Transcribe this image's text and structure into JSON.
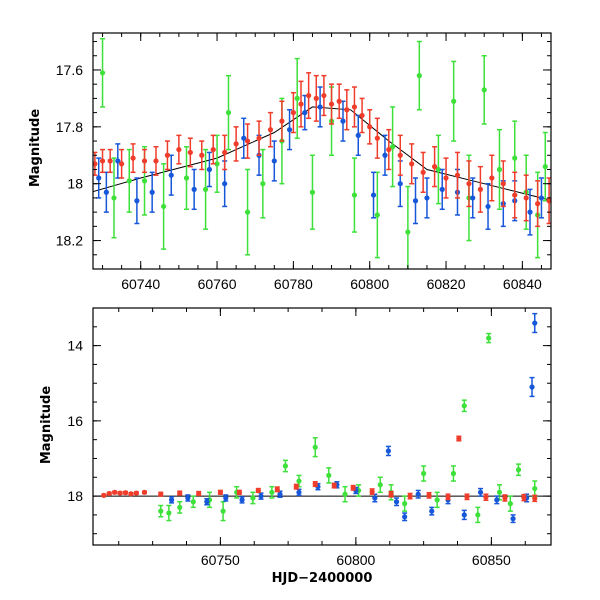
{
  "colors": {
    "red": "#f03c2a",
    "green": "#3ee03a",
    "blue": "#1757d9",
    "trend": "#000000"
  },
  "chart_data": [
    {
      "type": "scatter",
      "title": "",
      "xlabel": "",
      "ylabel": "Magnitude",
      "xlim": [
        60727.5,
        60847.5
      ],
      "ylim": [
        18.3,
        17.47
      ],
      "y_inverted": true,
      "grid": false,
      "xticks": [
        60740,
        60760,
        60780,
        60800,
        60820,
        60840
      ],
      "xtick_labels": [
        "60740",
        "60760",
        "60780",
        "60800",
        "60820",
        "60840"
      ],
      "yticks": [
        17.6,
        17.8,
        18.0,
        18.2
      ],
      "ytick_labels": [
        "17.6",
        "17.8",
        "18",
        "18.2"
      ],
      "trend": {
        "x": [
          60727,
          60740,
          60760,
          60775,
          60785,
          60795,
          60805,
          60815,
          60830,
          60848
        ],
        "y": [
          18.03,
          17.98,
          17.91,
          17.82,
          17.73,
          17.74,
          17.85,
          17.95,
          18.0,
          18.06
        ]
      },
      "series": [
        {
          "color": "red",
          "x": [
            60728,
            60730,
            60732,
            60735,
            60738,
            60741,
            60744,
            60747,
            60750,
            60753,
            60756,
            60759,
            60762,
            60765,
            60768,
            60771,
            60774,
            60777,
            60780,
            60782,
            60784,
            60786,
            60788,
            60790,
            60792,
            60794,
            60796,
            60798,
            60800,
            60802,
            60805,
            60808,
            60811,
            60814,
            60817,
            60820,
            60823,
            60826,
            60829,
            60832,
            60835,
            60838,
            60841,
            60844,
            60847
          ],
          "y": [
            17.93,
            17.92,
            17.92,
            17.93,
            17.91,
            17.92,
            17.92,
            17.9,
            17.88,
            17.89,
            17.9,
            17.88,
            17.89,
            17.86,
            17.85,
            17.84,
            17.81,
            17.78,
            17.75,
            17.72,
            17.69,
            17.7,
            17.69,
            17.72,
            17.71,
            17.74,
            17.73,
            17.76,
            17.8,
            17.84,
            17.88,
            17.9,
            17.93,
            17.96,
            17.94,
            17.98,
            17.97,
            18.0,
            18.02,
            17.98,
            18.0,
            18.04,
            18.05,
            18.07,
            18.06
          ],
          "err": [
            0.04,
            0.04,
            0.04,
            0.05,
            0.05,
            0.04,
            0.05,
            0.05,
            0.05,
            0.05,
            0.05,
            0.05,
            0.06,
            0.06,
            0.06,
            0.06,
            0.06,
            0.07,
            0.07,
            0.08,
            0.08,
            0.08,
            0.07,
            0.07,
            0.06,
            0.07,
            0.07,
            0.06,
            0.06,
            0.07,
            0.07,
            0.07,
            0.07,
            0.07,
            0.07,
            0.07,
            0.08,
            0.08,
            0.08,
            0.08,
            0.08,
            0.08,
            0.08,
            0.08,
            0.08
          ]
        },
        {
          "color": "green",
          "x": [
            60730,
            60733,
            60737,
            60741,
            60746,
            60752,
            60757,
            60760,
            60763,
            60768,
            60772,
            60777,
            60781,
            60785,
            60790,
            60796,
            60802,
            60806,
            60810,
            60813,
            60818,
            60822,
            60826,
            60830,
            60834,
            60838,
            60841,
            60844,
            60846
          ],
          "y": [
            17.61,
            18.05,
            17.99,
            17.99,
            18.08,
            17.98,
            18.02,
            17.93,
            17.75,
            18.1,
            18.0,
            17.85,
            17.7,
            18.03,
            17.78,
            18.04,
            18.11,
            17.87,
            18.17,
            17.62,
            17.95,
            17.71,
            18.05,
            17.67,
            17.95,
            17.91,
            18.03,
            18.11,
            17.94
          ],
          "err": [
            0.12,
            0.14,
            0.11,
            0.12,
            0.15,
            0.11,
            0.14,
            0.1,
            0.13,
            0.15,
            0.12,
            0.15,
            0.14,
            0.13,
            0.12,
            0.13,
            0.15,
            0.14,
            0.16,
            0.12,
            0.12,
            0.14,
            0.15,
            0.12,
            0.14,
            0.13,
            0.13,
            0.15,
            0.12
          ]
        },
        {
          "color": "blue",
          "x": [
            60729,
            60731,
            60734,
            60739,
            60743,
            60748,
            60754,
            60758,
            60762,
            60767,
            60771,
            60775,
            60779,
            60783,
            60787,
            60793,
            60797,
            60801,
            60804,
            60808,
            60812,
            60815,
            60819,
            60823,
            60827,
            60831,
            60835,
            60838,
            60842,
            60845
          ],
          "y": [
            17.98,
            18.03,
            17.92,
            18.06,
            18.03,
            17.97,
            18.02,
            17.95,
            18.0,
            17.84,
            17.9,
            17.92,
            17.81,
            17.75,
            17.73,
            17.78,
            17.83,
            18.04,
            17.9,
            18.0,
            18.06,
            18.05,
            18.02,
            18.03,
            18.05,
            18.08,
            18.07,
            18.06,
            18.1,
            18.05
          ],
          "err": [
            0.07,
            0.07,
            0.06,
            0.08,
            0.07,
            0.07,
            0.07,
            0.06,
            0.08,
            0.07,
            0.07,
            0.07,
            0.07,
            0.06,
            0.07,
            0.07,
            0.07,
            0.08,
            0.07,
            0.08,
            0.08,
            0.07,
            0.07,
            0.08,
            0.07,
            0.08,
            0.08,
            0.07,
            0.08,
            0.07
          ]
        }
      ]
    },
    {
      "type": "scatter",
      "title": "",
      "xlabel": "HJD−2400000",
      "ylabel": "Magnitude",
      "xlim": [
        60703,
        60872
      ],
      "ylim": [
        19.3,
        13.0
      ],
      "y_inverted": true,
      "grid": false,
      "xticks": [
        60750,
        60800,
        60850
      ],
      "xtick_labels": [
        "60750",
        "60800",
        "60850"
      ],
      "yticks": [
        14,
        16,
        18
      ],
      "ytick_labels": [
        "14",
        "16",
        "18"
      ],
      "trend": {
        "x": [
          60703,
          60872
        ],
        "y": [
          18.0,
          18.0
        ]
      },
      "series": [
        {
          "color": "red",
          "x": [
            60707,
            60709,
            60711,
            60713,
            60715,
            60717,
            60719,
            60722,
            60728,
            60735,
            60742,
            60750,
            60757,
            60764,
            60771,
            60778,
            60785,
            60792,
            60799,
            60806,
            60813,
            60820,
            60827,
            60834,
            60838,
            60841,
            60848,
            60855,
            60862,
            60866
          ],
          "y": [
            17.98,
            17.93,
            17.9,
            17.92,
            17.91,
            17.94,
            17.92,
            17.9,
            17.95,
            17.92,
            17.93,
            17.9,
            17.9,
            17.85,
            17.82,
            17.75,
            17.68,
            17.72,
            17.78,
            17.88,
            17.95,
            18.0,
            17.98,
            18.02,
            16.47,
            18.02,
            18.03,
            18.05,
            18.04,
            18.06
          ],
          "err": [
            0.03,
            0.03,
            0.03,
            0.03,
            0.03,
            0.03,
            0.03,
            0.03,
            0.05,
            0.05,
            0.05,
            0.05,
            0.05,
            0.05,
            0.06,
            0.06,
            0.06,
            0.06,
            0.06,
            0.07,
            0.07,
            0.07,
            0.07,
            0.07,
            0.06,
            0.07,
            0.08,
            0.08,
            0.08,
            0.08
          ]
        },
        {
          "color": "green",
          "x": [
            60728,
            60731,
            60735,
            60740,
            60746,
            60751,
            60756,
            60762,
            60769,
            60774,
            60779,
            60785,
            60790,
            60796,
            60801,
            60809,
            60813,
            60818,
            60825,
            60830,
            60836,
            60840,
            60845,
            60849,
            60853,
            60857,
            60860,
            60866
          ],
          "y": [
            18.4,
            18.45,
            18.3,
            18.15,
            18.1,
            18.4,
            17.9,
            18.05,
            17.9,
            17.2,
            17.6,
            16.7,
            17.45,
            17.95,
            17.85,
            17.7,
            17.9,
            18.2,
            17.4,
            18.1,
            17.4,
            15.6,
            18.5,
            13.8,
            17.9,
            18.2,
            17.3,
            17.8
          ],
          "err": [
            0.15,
            0.2,
            0.15,
            0.15,
            0.2,
            0.25,
            0.15,
            0.15,
            0.15,
            0.15,
            0.15,
            0.25,
            0.2,
            0.2,
            0.15,
            0.2,
            0.2,
            0.2,
            0.2,
            0.2,
            0.2,
            0.15,
            0.2,
            0.12,
            0.2,
            0.2,
            0.15,
            0.2
          ]
        },
        {
          "color": "blue",
          "x": [
            60732,
            60738,
            60745,
            60752,
            60758,
            60765,
            60772,
            60779,
            60786,
            60793,
            60800,
            60807,
            60812,
            60815,
            60818,
            60823,
            60828,
            60834,
            60840,
            60846,
            60852,
            60858,
            60863,
            60865,
            60866
          ],
          "y": [
            18.1,
            18.05,
            18.15,
            18.05,
            18.1,
            18.0,
            17.95,
            17.9,
            17.75,
            17.7,
            17.85,
            18.05,
            16.8,
            18.15,
            18.55,
            17.95,
            18.4,
            18.1,
            18.5,
            17.9,
            18.1,
            18.6,
            18.05,
            15.1,
            13.4
          ],
          "err": [
            0.08,
            0.08,
            0.08,
            0.08,
            0.08,
            0.08,
            0.08,
            0.08,
            0.08,
            0.08,
            0.08,
            0.1,
            0.12,
            0.1,
            0.1,
            0.1,
            0.1,
            0.1,
            0.12,
            0.1,
            0.1,
            0.1,
            0.1,
            0.25,
            0.25
          ]
        }
      ]
    }
  ]
}
